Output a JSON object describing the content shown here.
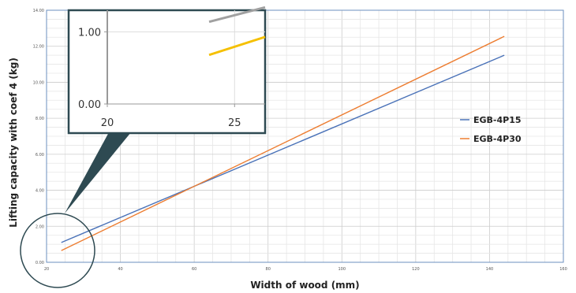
{
  "chart_data": {
    "type": "line",
    "xlabel": "Width of wood (mm)",
    "ylabel": "Lifting capacity with coef 4 (kg)",
    "xlim": [
      20,
      160
    ],
    "ylim": [
      0,
      14
    ],
    "x_ticks": [
      "20",
      "40",
      "60",
      "80",
      "100",
      "120",
      "140",
      "160"
    ],
    "y_ticks": [
      "0.00",
      "2.00",
      "4.00",
      "6.00",
      "8.00",
      "10.00",
      "12.00",
      "14.00"
    ],
    "grid": true,
    "legend_position": "right",
    "series": [
      {
        "name": "EGB-4P15",
        "color": "#4a72b8",
        "x": [
          24,
          144
        ],
        "y": [
          1.1,
          11.5
        ]
      },
      {
        "name": "EGB-4P30",
        "color": "#ed7d31",
        "x": [
          24,
          144
        ],
        "y": [
          0.65,
          12.55
        ]
      }
    ],
    "inset": {
      "xlim": [
        20,
        26.2
      ],
      "ylim": [
        0,
        1.3
      ],
      "x_ticks": [
        "20",
        "25"
      ],
      "y_ticks": [
        "0.00",
        "1.00"
      ],
      "series": [
        {
          "color": "#a0a0a0",
          "x": [
            24,
            26.2
          ],
          "y": [
            1.14,
            1.34
          ]
        },
        {
          "color": "#f5c000",
          "x": [
            24,
            26.2
          ],
          "y": [
            0.68,
            0.93
          ]
        }
      ]
    }
  }
}
